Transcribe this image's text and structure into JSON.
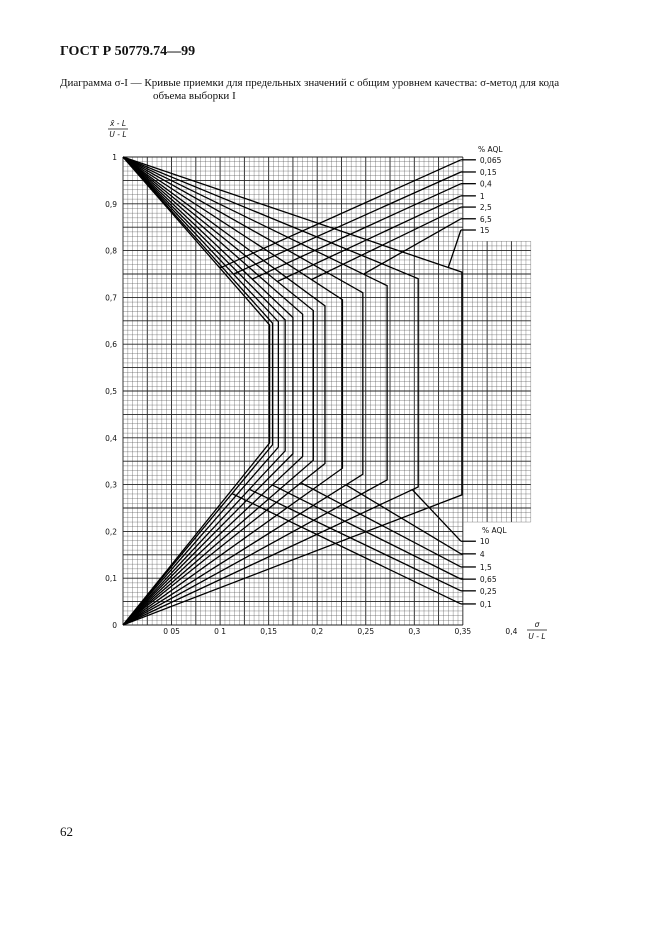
{
  "header": {
    "standard": "ГОСТ Р 50779.74—99"
  },
  "caption": {
    "line1": "Диаграмма σ-I — Кривые приемки для предельных значений с общим уровнем качества: σ-метод для кода",
    "line2": "объема выборки I"
  },
  "page_number": "62",
  "chart_data": {
    "type": "line",
    "title": "",
    "ylabel": {
      "numerator": "x̄ - L",
      "denominator": "U - L"
    },
    "xlabel": {
      "numerator": "σ",
      "denominator": "U - L"
    },
    "xlim": [
      0,
      0.42
    ],
    "ylim": [
      0,
      1
    ],
    "grid": true,
    "x_ticks": [
      {
        "value": 0.05,
        "label": "0 05"
      },
      {
        "value": 0.1,
        "label": "0 1"
      },
      {
        "value": 0.15,
        "label": "0,15"
      },
      {
        "value": 0.2,
        "label": "0,2"
      },
      {
        "value": 0.25,
        "label": "0,25"
      },
      {
        "value": 0.3,
        "label": "0,3"
      },
      {
        "value": 0.35,
        "label": "0,35"
      },
      {
        "value": 0.4,
        "label": "0,4"
      }
    ],
    "y_ticks": [
      {
        "value": 0,
        "label": "0"
      },
      {
        "value": 0.1,
        "label": "0,1"
      },
      {
        "value": 0.2,
        "label": "0,2"
      },
      {
        "value": 0.3,
        "label": "0,3"
      },
      {
        "value": 0.4,
        "label": "0,4"
      },
      {
        "value": 0.5,
        "label": "0,5"
      },
      {
        "value": 0.6,
        "label": "0,6"
      },
      {
        "value": 0.7,
        "label": "0,7"
      },
      {
        "value": 0.8,
        "label": "0,8"
      },
      {
        "value": 0.9,
        "label": "0,9"
      },
      {
        "value": 1,
        "label": "1"
      }
    ],
    "legend_title": "% AQL",
    "upper_labels": [
      "0,065",
      "0,15",
      "0,4",
      "1",
      "2,5",
      "6,5",
      "15"
    ],
    "lower_labels": [
      "10",
      "4",
      "1,5",
      "0,65",
      "0,25",
      "0,1"
    ],
    "series": [
      {
        "aql": "0,065",
        "points": [
          [
            0,
            1
          ],
          [
            0.151,
            0.641
          ],
          [
            0.151,
            0.389
          ],
          [
            0,
            0
          ]
        ],
        "label_at": [
          0.348,
          0.994
        ],
        "label_joins": [
          0.1,
          0.763
        ],
        "label_group": "upper"
      },
      {
        "aql": "0,1",
        "points": [
          [
            0,
            1
          ],
          [
            0.154,
            0.645
          ],
          [
            0.154,
            0.385
          ],
          [
            0,
            0
          ]
        ],
        "label_at": [
          0.348,
          0.045
        ],
        "label_joins": [
          0.112,
          0.281
        ],
        "label_group": "lower"
      },
      {
        "aql": "0,15",
        "points": [
          [
            0,
            1
          ],
          [
            0.16,
            0.648
          ],
          [
            0.16,
            0.38
          ],
          [
            0,
            0
          ]
        ],
        "label_at": [
          0.348,
          0.968
        ],
        "label_joins": [
          0.114,
          0.75
        ],
        "label_group": "upper"
      },
      {
        "aql": "0,25",
        "points": [
          [
            0,
            1
          ],
          [
            0.167,
            0.652
          ],
          [
            0.167,
            0.372
          ],
          [
            0,
            0
          ]
        ],
        "label_at": [
          0.348,
          0.073
        ],
        "label_joins": [
          0.13,
          0.29
        ],
        "label_group": "lower"
      },
      {
        "aql": "0,4",
        "points": [
          [
            0,
            1
          ],
          [
            0.175,
            0.657
          ],
          [
            0.175,
            0.366
          ],
          [
            0,
            0
          ]
        ],
        "label_at": [
          0.348,
          0.943
        ],
        "label_joins": [
          0.133,
          0.739
        ],
        "label_group": "upper"
      },
      {
        "aql": "0,65",
        "points": [
          [
            0,
            1
          ],
          [
            0.185,
            0.664
          ],
          [
            0.185,
            0.36
          ],
          [
            0,
            0
          ]
        ],
        "label_at": [
          0.348,
          0.098
        ],
        "label_joins": [
          0.154,
          0.299
        ],
        "label_group": "lower"
      },
      {
        "aql": "1",
        "points": [
          [
            0,
            1
          ],
          [
            0.196,
            0.672
          ],
          [
            0.196,
            0.352
          ],
          [
            0,
            0
          ]
        ],
        "label_at": [
          0.348,
          0.917
        ],
        "label_joins": [
          0.159,
          0.734
        ],
        "label_group": "upper"
      },
      {
        "aql": "1,5",
        "points": [
          [
            0,
            1
          ],
          [
            0.208,
            0.682
          ],
          [
            0.208,
            0.345
          ],
          [
            0,
            0
          ]
        ],
        "label_at": [
          0.348,
          0.124
        ],
        "label_joins": [
          0.183,
          0.304
        ],
        "label_group": "lower"
      },
      {
        "aql": "2,5",
        "points": [
          [
            0,
            1
          ],
          [
            0.226,
            0.695
          ],
          [
            0.226,
            0.335
          ],
          [
            0,
            0
          ]
        ],
        "label_at": [
          0.348,
          0.893
        ],
        "label_joins": [
          0.194,
          0.738
        ],
        "label_group": "upper"
      },
      {
        "aql": "4",
        "points": [
          [
            0,
            1
          ],
          [
            0.247,
            0.71
          ],
          [
            0.247,
            0.322
          ],
          [
            0,
            0
          ]
        ],
        "label_at": [
          0.348,
          0.152
        ],
        "label_joins": [
          0.23,
          0.299
        ],
        "label_group": "lower"
      },
      {
        "aql": "6,5",
        "points": [
          [
            0,
            1
          ],
          [
            0.272,
            0.725
          ],
          [
            0.272,
            0.31
          ],
          [
            0,
            0
          ]
        ],
        "label_at": [
          0.348,
          0.868
        ],
        "label_joins": [
          0.248,
          0.75
        ],
        "label_group": "upper"
      },
      {
        "aql": "10",
        "points": [
          [
            0,
            1
          ],
          [
            0.304,
            0.74
          ],
          [
            0.304,
            0.295
          ],
          [
            0,
            0
          ]
        ],
        "label_at": [
          0.348,
          0.179
        ],
        "label_joins": [
          0.298,
          0.289
        ],
        "label_group": "lower"
      },
      {
        "aql": "15",
        "points": [
          [
            0,
            1
          ],
          [
            0.349,
            0.754
          ],
          [
            0.349,
            0.278
          ],
          [
            0,
            0
          ]
        ],
        "label_at": [
          0.348,
          0.844
        ],
        "label_joins": [
          0.335,
          0.764
        ],
        "label_group": "upper"
      }
    ],
    "colors": {
      "line": "#000000",
      "grid_major": "#222222",
      "grid_minor": "#555555"
    }
  }
}
